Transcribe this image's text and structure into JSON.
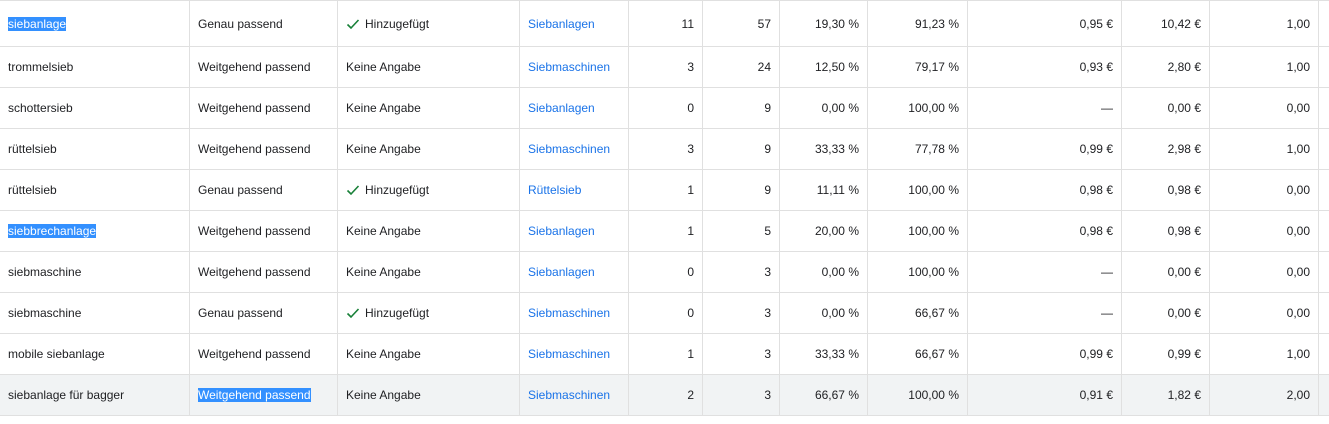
{
  "rows": [
    {
      "term": "siebanlage",
      "term_selected": true,
      "match": "Genau passend",
      "match_selected": false,
      "added": "Hinzugefügt",
      "added_check": true,
      "ad_group": "Siebanlagen",
      "clicks": "11",
      "impressions": "57",
      "ctr": "19,30 %",
      "share": "91,23 %",
      "avg_cpc": "0,95 €",
      "cost": "10,42 €",
      "conv": "1,00"
    },
    {
      "term": "trommelsieb",
      "term_selected": false,
      "match": "Weitgehend passend",
      "match_selected": false,
      "added": "Keine Angabe",
      "added_check": false,
      "ad_group": "Siebmaschinen",
      "clicks": "3",
      "impressions": "24",
      "ctr": "12,50 %",
      "share": "79,17 %",
      "avg_cpc": "0,93 €",
      "cost": "2,80 €",
      "conv": "1,00"
    },
    {
      "term": "schottersieb",
      "term_selected": false,
      "match": "Weitgehend passend",
      "match_selected": false,
      "added": "Keine Angabe",
      "added_check": false,
      "ad_group": "Siebanlagen",
      "clicks": "0",
      "impressions": "9",
      "ctr": "0,00 %",
      "share": "100,00 %",
      "avg_cpc": "—",
      "cost": "0,00 €",
      "conv": "0,00"
    },
    {
      "term": "rüttelsieb",
      "term_selected": false,
      "match": "Weitgehend passend",
      "match_selected": false,
      "added": "Keine Angabe",
      "added_check": false,
      "ad_group": "Siebmaschinen",
      "clicks": "3",
      "impressions": "9",
      "ctr": "33,33 %",
      "share": "77,78 %",
      "avg_cpc": "0,99 €",
      "cost": "2,98 €",
      "conv": "1,00"
    },
    {
      "term": "rüttelsieb",
      "term_selected": false,
      "match": "Genau passend",
      "match_selected": false,
      "added": "Hinzugefügt",
      "added_check": true,
      "ad_group": "Rüttelsieb",
      "clicks": "1",
      "impressions": "9",
      "ctr": "11,11 %",
      "share": "100,00 %",
      "avg_cpc": "0,98 €",
      "cost": "0,98 €",
      "conv": "0,00"
    },
    {
      "term": "siebbrechanlage",
      "term_selected": true,
      "match": "Weitgehend passend",
      "match_selected": false,
      "added": "Keine Angabe",
      "added_check": false,
      "ad_group": "Siebanlagen",
      "clicks": "1",
      "impressions": "5",
      "ctr": "20,00 %",
      "share": "100,00 %",
      "avg_cpc": "0,98 €",
      "cost": "0,98 €",
      "conv": "0,00"
    },
    {
      "term": "siebmaschine",
      "term_selected": false,
      "match": "Weitgehend passend",
      "match_selected": false,
      "added": "Keine Angabe",
      "added_check": false,
      "ad_group": "Siebanlagen",
      "clicks": "0",
      "impressions": "3",
      "ctr": "0,00 %",
      "share": "100,00 %",
      "avg_cpc": "—",
      "cost": "0,00 €",
      "conv": "0,00"
    },
    {
      "term": "siebmaschine",
      "term_selected": false,
      "match": "Genau passend",
      "match_selected": false,
      "added": "Hinzugefügt",
      "added_check": true,
      "ad_group": "Siebmaschinen",
      "clicks": "0",
      "impressions": "3",
      "ctr": "0,00 %",
      "share": "66,67 %",
      "avg_cpc": "—",
      "cost": "0,00 €",
      "conv": "0,00"
    },
    {
      "term": "mobile siebanlage",
      "term_selected": false,
      "match": "Weitgehend passend",
      "match_selected": false,
      "added": "Keine Angabe",
      "added_check": false,
      "ad_group": "Siebmaschinen",
      "clicks": "1",
      "impressions": "3",
      "ctr": "33,33 %",
      "share": "66,67 %",
      "avg_cpc": "0,99 €",
      "cost": "0,99 €",
      "conv": "1,00"
    },
    {
      "term": "siebanlage für bagger",
      "term_selected": false,
      "match": "Weitgehend passend",
      "match_selected": true,
      "added": "Keine Angabe",
      "added_check": false,
      "ad_group": "Siebmaschinen",
      "clicks": "2",
      "impressions": "3",
      "ctr": "66,67 %",
      "share": "100,00 %",
      "avg_cpc": "0,91 €",
      "cost": "1,82 €",
      "conv": "2,00",
      "hover": true
    }
  ],
  "colors": {
    "link": "#1a73e8",
    "check": "#188038",
    "selection": "#3390ff",
    "hover_row": "#f1f3f4",
    "grid": "#e0e0e0"
  },
  "icons": {
    "added_icon": "checkmark-icon"
  }
}
